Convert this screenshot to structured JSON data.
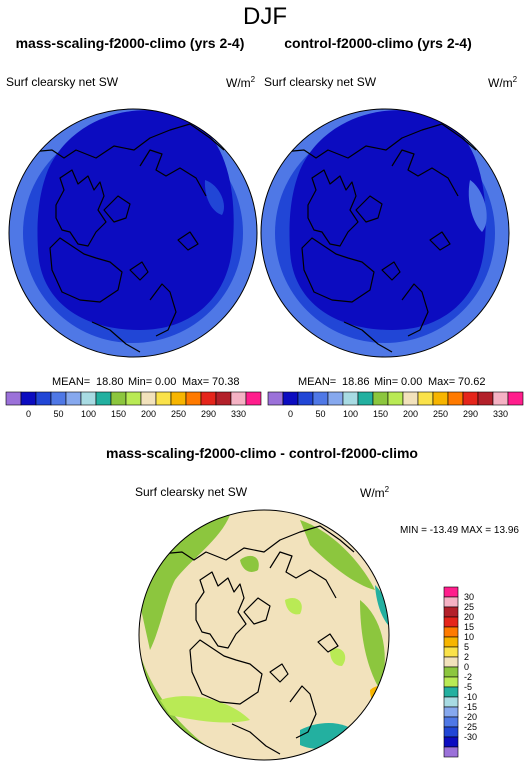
{
  "page_title": "DJF",
  "panels": [
    {
      "title": "mass-scaling-f2000-climo (yrs 2-4)",
      "variable": "Surf clearsky net SW",
      "units": "W/m",
      "units_sup": "2",
      "stats": {
        "mean_label": "MEAN=",
        "mean": "18.80",
        "min_label": "Min=",
        "min": "0.00",
        "max_label": "Max=",
        "max": "70.38"
      }
    },
    {
      "title": "control-f2000-climo (yrs 2-4)",
      "variable": "Surf clearsky net SW",
      "units": "W/m",
      "units_sup": "2",
      "stats": {
        "mean_label": "MEAN=",
        "mean": "18.86",
        "min_label": "Min=",
        "min": "0.00",
        "max_label": "Max=",
        "max": "70.62"
      }
    }
  ],
  "diff_panel": {
    "title": "mass-scaling-f2000-climo - control-f2000-climo",
    "variable": "Surf clearsky net SW",
    "units": "W/m",
    "units_sup": "2",
    "minmax": "MIN = -13.49 MAX =  13.96"
  },
  "chart_data": [
    {
      "type": "heatmap",
      "title": "mass-scaling-f2000-climo (yrs 2-4)",
      "projection": "north-polar-stereographic",
      "colorbar_levels": [
        "0",
        "50",
        "100",
        "150",
        "200",
        "250",
        "290",
        "330"
      ],
      "colorbar_colors": [
        "#9b71d9",
        "#0c0cc0",
        "#2146d6",
        "#4f78e6",
        "#86a8ee",
        "#a8dbe3",
        "#23b0a0",
        "#8cc63e",
        "#b9ea55",
        "#f2e2bc",
        "#fae24a",
        "#f7b500",
        "#ff7a00",
        "#e5251b",
        "#b3202a",
        "#f5b2c4",
        "#ff1e8c"
      ],
      "mean": 18.8,
      "min": 0.0,
      "max": 70.38
    },
    {
      "type": "heatmap",
      "title": "control-f2000-climo (yrs 2-4)",
      "projection": "north-polar-stereographic",
      "colorbar_levels": [
        "0",
        "50",
        "100",
        "150",
        "200",
        "250",
        "290",
        "330"
      ],
      "colorbar_colors": [
        "#9b71d9",
        "#0c0cc0",
        "#2146d6",
        "#4f78e6",
        "#86a8ee",
        "#a8dbe3",
        "#23b0a0",
        "#8cc63e",
        "#b9ea55",
        "#f2e2bc",
        "#fae24a",
        "#f7b500",
        "#ff7a00",
        "#e5251b",
        "#b3202a",
        "#f5b2c4",
        "#ff1e8c"
      ],
      "mean": 18.86,
      "min": 0.0,
      "max": 70.62
    },
    {
      "type": "heatmap",
      "title": "mass-scaling-f2000-climo - control-f2000-climo",
      "projection": "north-polar-stereographic",
      "colorbar_levels": [
        "30",
        "25",
        "20",
        "15",
        "10",
        "5",
        "2",
        "0",
        "-2",
        "-5",
        "-10",
        "-15",
        "-20",
        "-25",
        "-30"
      ],
      "colorbar_colors": [
        "#ff1e8c",
        "#f5b2c4",
        "#b3202a",
        "#e5251b",
        "#ff7a00",
        "#f7b500",
        "#fae24a",
        "#f2e2bc",
        "#8cc63e",
        "#b9ea55",
        "#23b0a0",
        "#a8dbe3",
        "#86a8ee",
        "#4f78e6",
        "#2146d6",
        "#0c0cc0",
        "#9b71d9"
      ],
      "min": -13.49,
      "max": 13.96
    }
  ]
}
